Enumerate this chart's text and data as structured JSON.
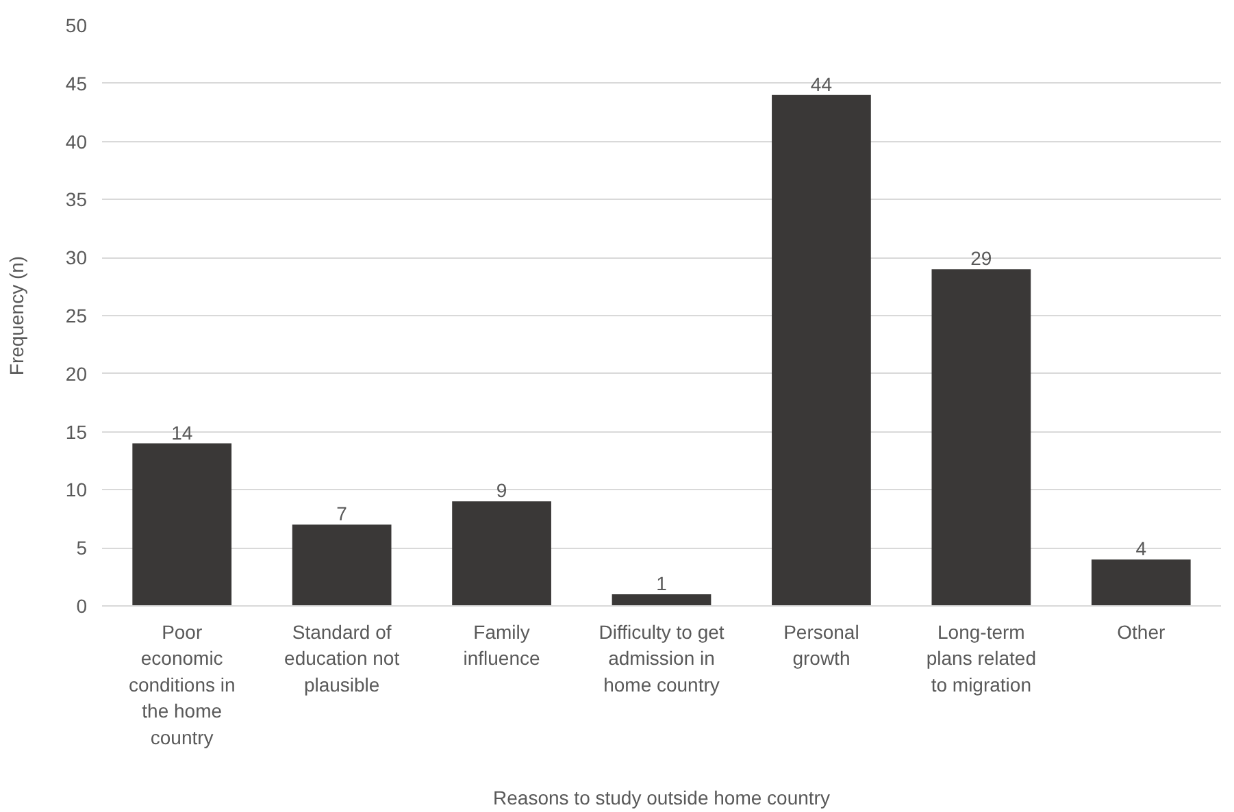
{
  "chart_data": {
    "type": "bar",
    "xlabel": "Reasons to study outside home country",
    "ylabel": "Frequency (n)",
    "categories": [
      "Poor\neconomic\nconditions in\nthe home\ncountry",
      "Standard of\neducation not\nplausible",
      "Family\ninfluence",
      "Difficulty to get\nadmission in\nhome country",
      "Personal\ngrowth",
      "Long-term\nplans related\nto migration",
      "Other"
    ],
    "values": [
      14,
      7,
      9,
      1,
      44,
      29,
      4
    ],
    "color": "#3a3837",
    "ylim": [
      0,
      50
    ],
    "yticks": [
      0,
      5,
      10,
      15,
      20,
      25,
      30,
      35,
      40,
      45,
      50
    ],
    "grid": "y",
    "data_labels": true
  }
}
